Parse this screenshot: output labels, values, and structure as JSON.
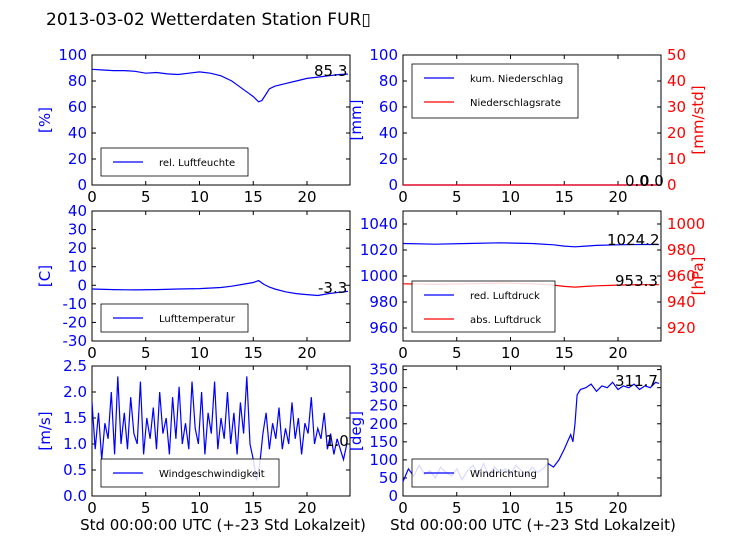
{
  "title": "2013-03-02 Wetterdaten Station FUR▯",
  "colors": {
    "left_axis": "#0000ff",
    "right_axis": "#ff0000",
    "series1": "#0000ff",
    "series2": "#ff0000"
  },
  "xlabel": "Std 00:00:00 UTC (+-23 Std Lokalzeit)",
  "chart_data": [
    {
      "type": "line",
      "panel": "humidity",
      "ylabel": "[%]",
      "ylim": [
        0,
        100
      ],
      "yticks": [
        0,
        20,
        40,
        60,
        80,
        100
      ],
      "xlim": [
        0,
        24
      ],
      "xticks": [
        0,
        5,
        10,
        15,
        20
      ],
      "legend": [
        "rel. Luftfeuchte"
      ],
      "annotation": "85.3",
      "series": [
        {
          "name": "rel. Luftfeuchte",
          "x": [
            0,
            1,
            2,
            3,
            4,
            5,
            6,
            7,
            8,
            9,
            10,
            11,
            12,
            13,
            14,
            14.5,
            15,
            15.5,
            15.8,
            16.2,
            16.5,
            17,
            18,
            19,
            20,
            21,
            22,
            23,
            23.8
          ],
          "y": [
            89,
            88.5,
            88,
            88,
            87.5,
            86,
            86.5,
            85.5,
            85,
            86,
            87,
            86,
            84,
            80,
            74,
            71,
            68,
            64,
            65,
            70,
            74,
            76,
            78,
            80,
            82,
            83,
            84,
            85,
            85.3
          ]
        }
      ]
    },
    {
      "type": "line",
      "panel": "precipitation",
      "ylabel": "[mm]",
      "ylabel_right": "[mm/std]",
      "ylim": [
        0,
        100
      ],
      "yticks": [
        0,
        20,
        40,
        60,
        80,
        100
      ],
      "ylim_right": [
        0,
        50
      ],
      "yticks_right": [
        0,
        10,
        20,
        30,
        40,
        50
      ],
      "xlim": [
        0,
        24
      ],
      "xticks": [
        0,
        5,
        10,
        15,
        20
      ],
      "legend": [
        "kum. Niederschlag",
        "Niederschlagsrate"
      ],
      "annotation": "0.0",
      "annotation_right": "0.0",
      "series": [
        {
          "name": "kum. Niederschlag",
          "axis": "left",
          "x": [
            0,
            24
          ],
          "y": [
            0,
            0
          ]
        },
        {
          "name": "Niederschlagsrate",
          "axis": "right",
          "x": [
            0,
            24
          ],
          "y": [
            0,
            0
          ]
        }
      ]
    },
    {
      "type": "line",
      "panel": "temperature",
      "ylabel": "[C]",
      "ylim": [
        -30,
        40
      ],
      "yticks": [
        -30,
        -20,
        -10,
        0,
        10,
        20,
        30,
        40
      ],
      "xlim": [
        0,
        24
      ],
      "xticks": [
        0,
        5,
        10,
        15,
        20
      ],
      "legend": [
        "Lufttemperatur"
      ],
      "annotation": "-3.3",
      "series": [
        {
          "name": "Lufttemperatur",
          "x": [
            0,
            2,
            4,
            6,
            8,
            10,
            12,
            13,
            14,
            15,
            15.5,
            16,
            16.5,
            17,
            18,
            19,
            20,
            21,
            22,
            23,
            23.8
          ],
          "y": [
            -2,
            -2.3,
            -2.5,
            -2.3,
            -2,
            -1.8,
            -1.2,
            -0.5,
            0.5,
            1.5,
            2.5,
            0.5,
            -1,
            -2,
            -3.5,
            -4.5,
            -5,
            -5.5,
            -4.5,
            -3.8,
            -3.3
          ]
        }
      ]
    },
    {
      "type": "line",
      "panel": "pressure",
      "ylabel_right": "[hPa]",
      "ylim": [
        950,
        1050
      ],
      "yticks": [
        960,
        980,
        1000,
        1020,
        1040
      ],
      "ylim_right": [
        910,
        1010
      ],
      "yticks_right": [
        920,
        940,
        960,
        980,
        1000
      ],
      "xlim": [
        0,
        24
      ],
      "xticks": [
        0,
        5,
        10,
        15,
        20
      ],
      "legend": [
        "red. Luftdruck",
        "abs. Luftdruck"
      ],
      "annotation": "1024.2",
      "annotation_right": "953.3",
      "series": [
        {
          "name": "red. Luftdruck",
          "axis": "left",
          "x": [
            0,
            3,
            6,
            9,
            12,
            14,
            15,
            16,
            17,
            18,
            20,
            22,
            23.8
          ],
          "y": [
            1025,
            1024.5,
            1025,
            1025.5,
            1025,
            1024,
            1023,
            1022.5,
            1023,
            1023.5,
            1024,
            1024.2,
            1024.2
          ]
        },
        {
          "name": "abs. Luftdruck",
          "axis": "right",
          "x": [
            0,
            3,
            6,
            9,
            12,
            14,
            15,
            16,
            17,
            18,
            20,
            22,
            23.8
          ],
          "y": [
            954,
            953.5,
            954,
            954.5,
            954,
            953,
            952,
            951.5,
            952,
            952.5,
            953,
            953.3,
            953.3
          ]
        }
      ]
    },
    {
      "type": "line",
      "panel": "wind_speed",
      "ylabel": "[m/s]",
      "ylim": [
        0,
        2.5
      ],
      "yticks": [
        0.0,
        0.5,
        1.0,
        1.5,
        2.0,
        2.5
      ],
      "xlim": [
        0,
        24
      ],
      "xticks": [
        0,
        5,
        10,
        15,
        20
      ],
      "legend": [
        "Windgeschwindigkeit"
      ],
      "annotation": "1.0",
      "series": [
        {
          "name": "Windgeschwindigkeit",
          "x": [
            0,
            0.3,
            0.6,
            0.9,
            1.2,
            1.5,
            1.8,
            2.1,
            2.4,
            2.7,
            3.0,
            3.3,
            3.6,
            3.9,
            4.2,
            4.5,
            4.8,
            5.1,
            5.4,
            5.7,
            6.0,
            6.3,
            6.6,
            6.9,
            7.2,
            7.5,
            7.8,
            8.1,
            8.4,
            8.7,
            9.0,
            9.3,
            9.6,
            9.9,
            10.2,
            10.5,
            10.8,
            11.1,
            11.4,
            11.7,
            12.0,
            12.3,
            12.6,
            12.9,
            13.2,
            13.5,
            13.8,
            14.1,
            14.4,
            14.7,
            15.0,
            15.3,
            15.6,
            15.9,
            16.2,
            16.5,
            16.8,
            17.1,
            17.4,
            17.7,
            18.0,
            18.3,
            18.6,
            18.9,
            19.2,
            19.5,
            19.8,
            20.1,
            20.4,
            20.7,
            21.0,
            21.3,
            21.6,
            21.9,
            22.2,
            22.5,
            22.8,
            23.1,
            23.4,
            23.7
          ],
          "y": [
            1.8,
            0.9,
            1.6,
            0.7,
            1.4,
            1.1,
            2.0,
            0.8,
            2.3,
            1.0,
            1.6,
            0.9,
            1.9,
            1.2,
            1.0,
            2.2,
            0.8,
            1.5,
            1.1,
            1.7,
            0.9,
            2.0,
            1.2,
            1.5,
            0.8,
            1.9,
            1.1,
            2.1,
            1.0,
            1.4,
            0.9,
            2.2,
            1.3,
            1.0,
            2.0,
            0.8,
            1.6,
            1.2,
            2.2,
            0.9,
            1.5,
            1.1,
            2.0,
            1.0,
            1.6,
            0.8,
            1.8,
            1.2,
            2.3,
            1.0,
            0.7,
            0.3,
            0.6,
            1.2,
            1.6,
            0.9,
            1.4,
            1.1,
            1.7,
            0.9,
            1.3,
            1.0,
            1.8,
            1.1,
            1.5,
            0.8,
            1.4,
            1.2,
            1.9,
            1.0,
            1.3,
            1.1,
            1.6,
            0.9,
            1.2,
            0.8,
            1.1,
            0.9,
            0.7,
            1.0
          ]
        }
      ]
    },
    {
      "type": "line",
      "panel": "wind_direction",
      "ylabel": "[deg]",
      "ylim": [
        0,
        360
      ],
      "yticks": [
        0,
        50,
        100,
        150,
        200,
        250,
        300,
        350
      ],
      "xlim": [
        0,
        24
      ],
      "xticks": [
        0,
        5,
        10,
        15,
        20
      ],
      "legend": [
        "Windrichtung"
      ],
      "annotation": "311.7",
      "series": [
        {
          "name": "Windrichtung",
          "x": [
            0,
            0.5,
            1.0,
            1.5,
            2.0,
            2.5,
            3.0,
            3.5,
            4.0,
            4.5,
            5.0,
            5.5,
            6.0,
            6.5,
            7.0,
            7.5,
            8.0,
            8.5,
            9.0,
            9.5,
            10.0,
            10.5,
            11.0,
            11.5,
            12.0,
            12.5,
            13.0,
            13.5,
            14.0,
            14.5,
            15.0,
            15.3,
            15.6,
            15.8,
            16.0,
            16.2,
            16.5,
            17.0,
            17.5,
            18.0,
            18.5,
            19.0,
            19.5,
            20.0,
            20.5,
            21.0,
            21.5,
            22.0,
            22.5,
            23.0,
            23.5,
            23.8
          ],
          "y": [
            40,
            75,
            55,
            85,
            60,
            70,
            50,
            80,
            65,
            55,
            75,
            45,
            70,
            85,
            60,
            90,
            55,
            80,
            65,
            75,
            60,
            85,
            70,
            55,
            80,
            65,
            75,
            90,
            80,
            100,
            130,
            150,
            170,
            150,
            200,
            280,
            295,
            300,
            310,
            290,
            305,
            300,
            315,
            295,
            305,
            300,
            310,
            295,
            305,
            300,
            315,
            311.7
          ]
        }
      ]
    }
  ]
}
